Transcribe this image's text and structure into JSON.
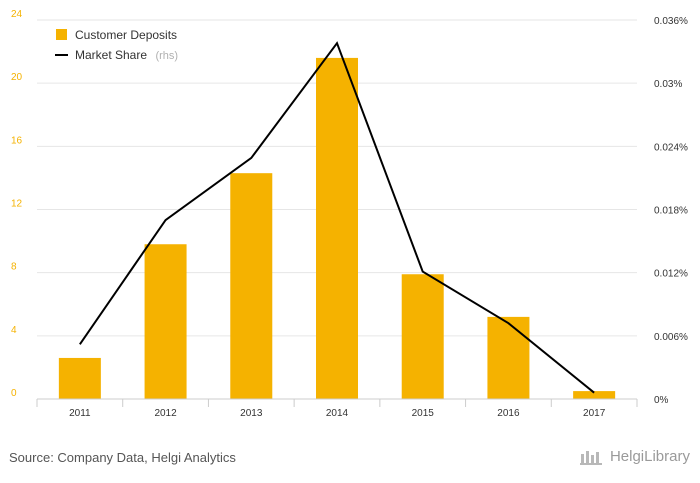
{
  "chart_data": {
    "type": "bar",
    "categories": [
      "2011",
      "2012",
      "2013",
      "2014",
      "2015",
      "2016",
      "2017"
    ],
    "series": [
      {
        "name": "Customer Deposits",
        "kind": "bar",
        "axis": "left",
        "values": [
          2.6,
          9.8,
          14.3,
          21.6,
          7.9,
          5.2,
          0.5
        ],
        "color": "#f5b200"
      },
      {
        "name": "Market Share",
        "name_suffix": "(rhs)",
        "kind": "line",
        "axis": "right",
        "values": [
          0.0052,
          0.017,
          0.0229,
          0.0338,
          0.0121,
          0.0072,
          0.0006
        ],
        "color": "#000000"
      }
    ],
    "left_axis": {
      "ylim": [
        0,
        24
      ],
      "ticks": [
        "0",
        "4",
        "8",
        "12",
        "16",
        "20",
        "24"
      ],
      "tick_values": [
        0,
        4,
        8,
        12,
        16,
        20,
        24
      ],
      "tick_color": "#f5b200"
    },
    "right_axis": {
      "ylim": [
        0,
        0.036
      ],
      "ticks": [
        "0%",
        "0.006%",
        "0.012%",
        "0.018%",
        "0.024%",
        "0.03%",
        "0.036%"
      ]
    },
    "grid": true,
    "legend_position": "top-left",
    "title": "",
    "xlabel": "",
    "ylabel": ""
  },
  "footer": {
    "source": "Source: Company Data, Helgi Analytics",
    "brand": "HelgiLibrary"
  }
}
